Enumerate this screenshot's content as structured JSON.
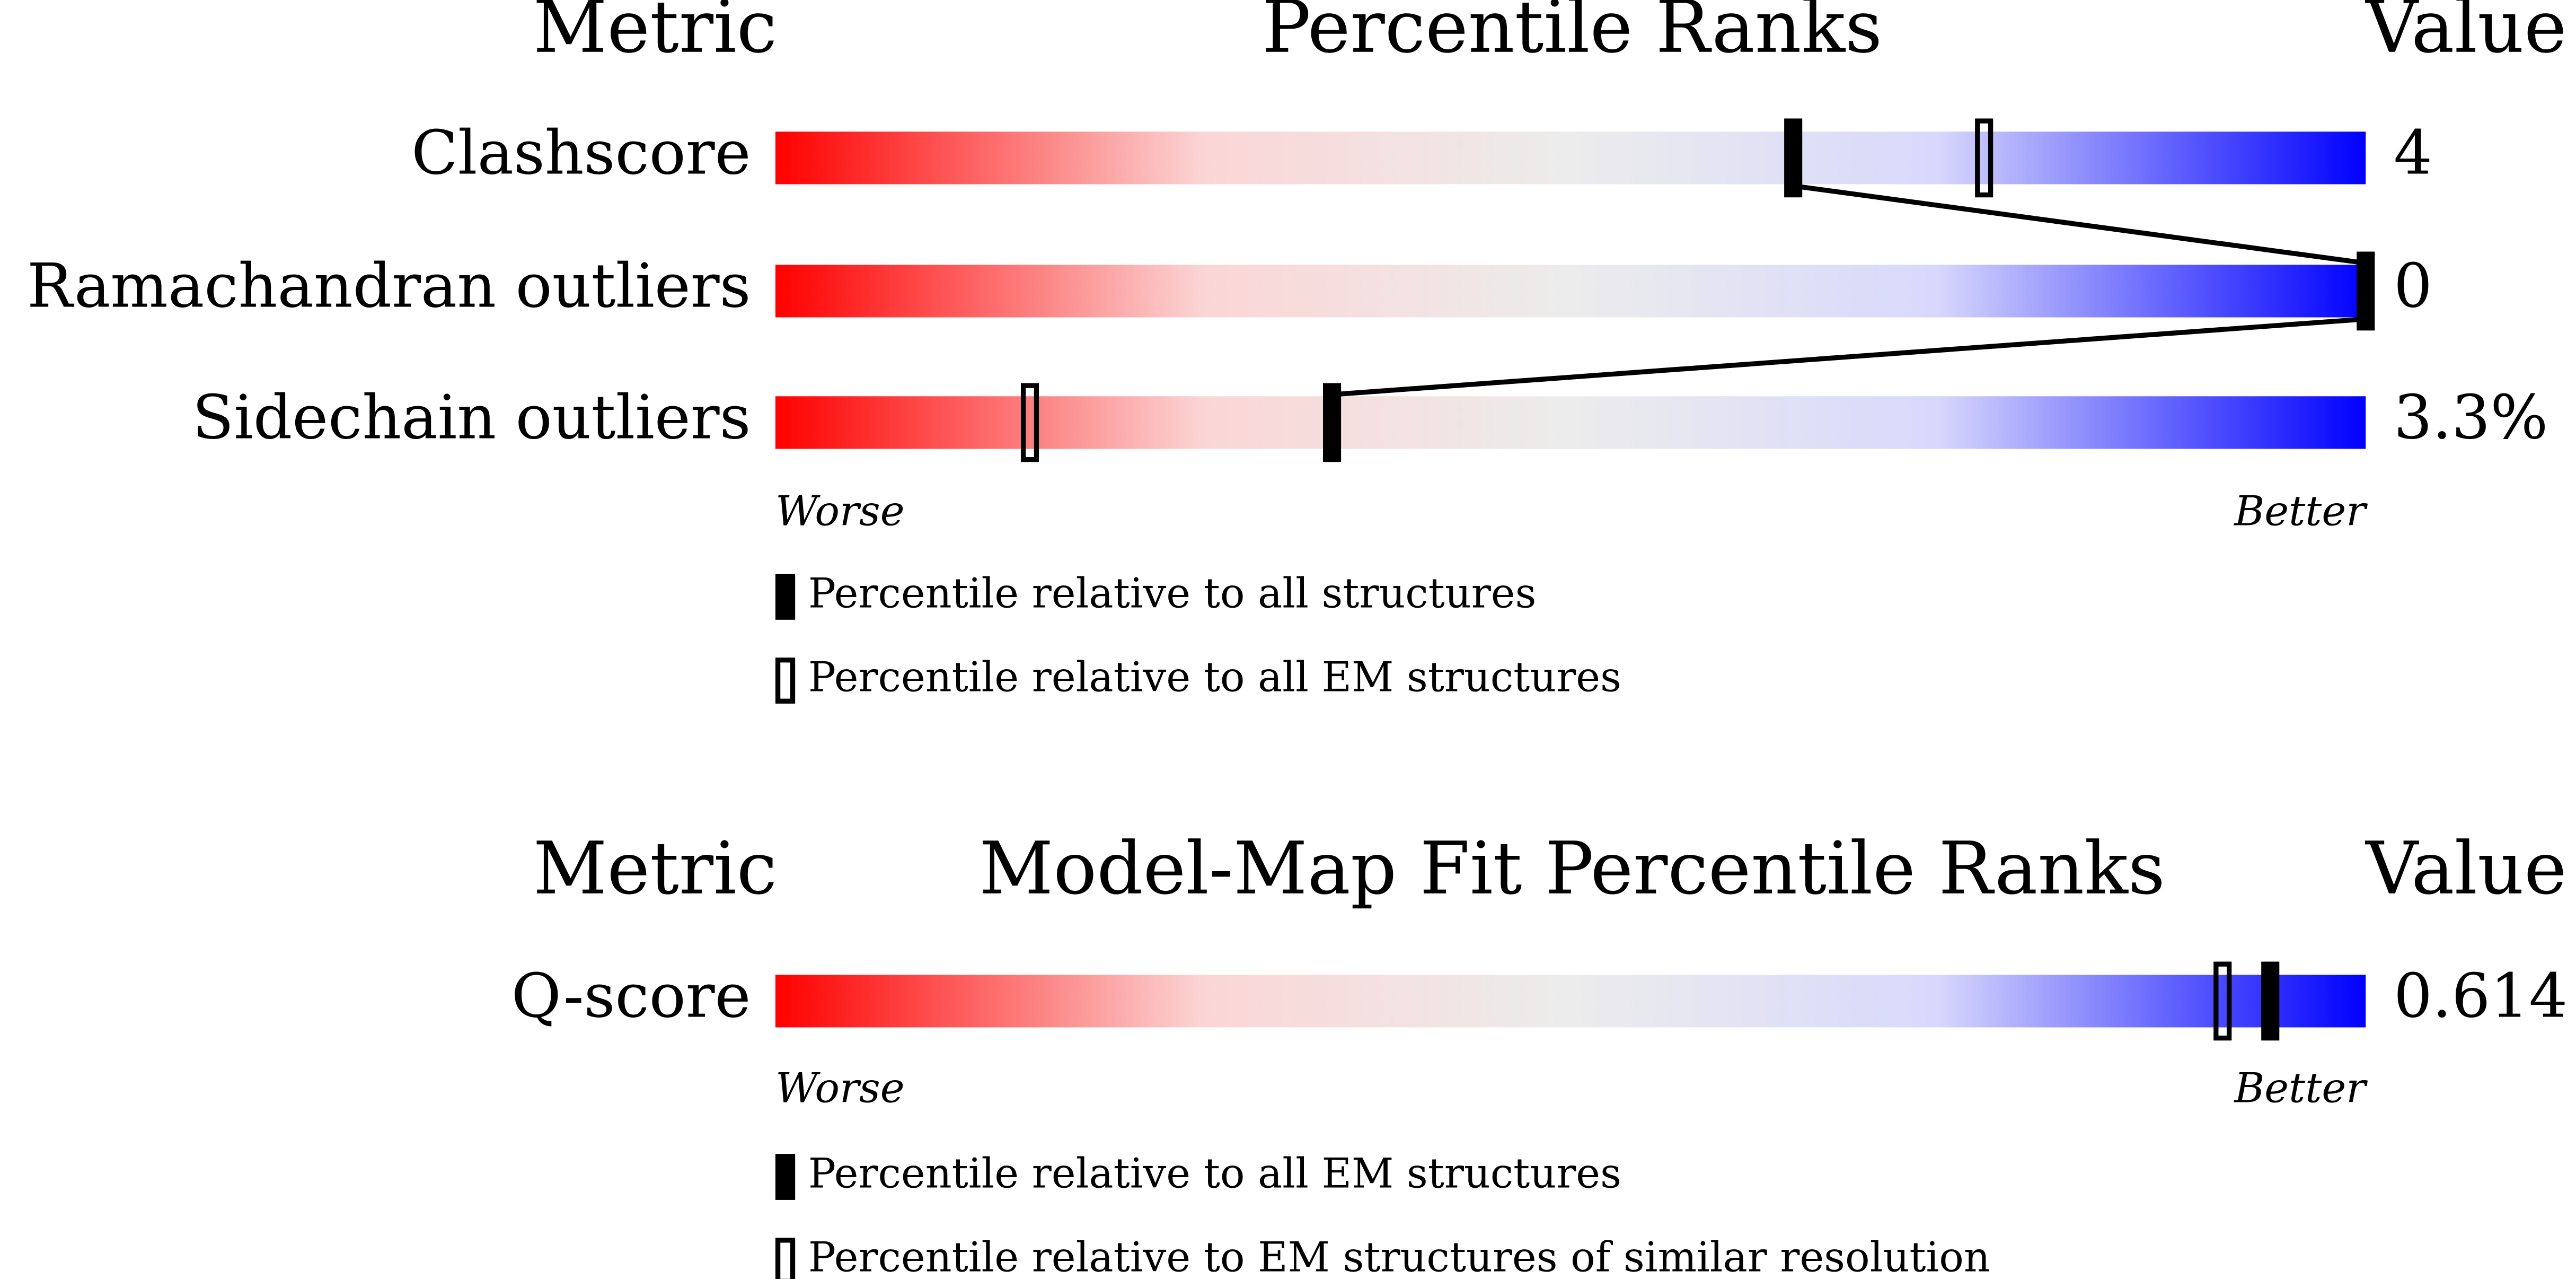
{
  "panels": [
    {
      "header": {
        "metric": "Metric",
        "title": "Percentile Ranks",
        "value": "Value"
      },
      "xlim": [
        0,
        100
      ],
      "rows": [
        {
          "metric": "Clashscore",
          "value": "4",
          "percentiles": [
            64,
            76
          ]
        },
        {
          "metric": "Ramachandran outliers",
          "value": "0",
          "percentiles": [
            100,
            null
          ]
        },
        {
          "metric": "Sidechain outliers",
          "value": "3.3%",
          "percentiles": [
            35,
            16
          ]
        }
      ],
      "worse": "Worse",
      "better": "Better",
      "legend": [
        "Percentile relative to all structures",
        "Percentile relative to all EM structures"
      ]
    },
    {
      "header": {
        "metric": "Metric",
        "title": "Model-Map Fit Percentile Ranks",
        "value": "Value"
      },
      "xlim": [
        0,
        100
      ],
      "rows": [
        {
          "metric": "Q-score",
          "value": "0.614",
          "percentiles": [
            94,
            91
          ]
        }
      ],
      "worse": "Worse",
      "better": "Better",
      "legend": [
        "Percentile relative to all EM structures",
        "Percentile relative to EM structures of similar resolution"
      ]
    }
  ]
}
